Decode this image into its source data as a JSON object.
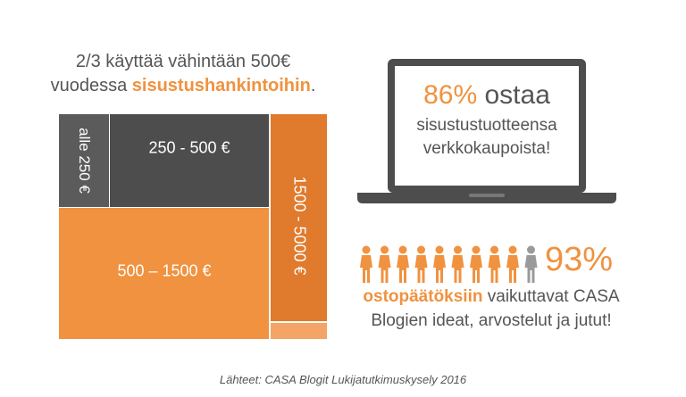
{
  "headline": {
    "line1": "2/3 käyttää vähintään 500€",
    "line2_plain": "vuodessa ",
    "line2_emphasis": "sisustushankintoihin",
    "line2_end": "."
  },
  "chart_data": {
    "type": "treemap",
    "title": "",
    "items": [
      {
        "label": "alle 250 €",
        "color": "#5b5b5b"
      },
      {
        "label": "250 - 500 €",
        "color": "#4d4d4d"
      },
      {
        "label": "500 – 1500 €",
        "color": "#f0923f"
      },
      {
        "label": "1500 - 5000 €",
        "color": "#e07a2c"
      },
      {
        "label": "",
        "color": "#f3a466"
      }
    ]
  },
  "laptop_stat": {
    "percent": "86%",
    "verb": "ostaa",
    "line1": "sisustustuotteensa",
    "line2": "verkkokaupoista!"
  },
  "people_stat": {
    "percent": "93%",
    "figures_total": 10,
    "figures_highlighted": 9,
    "line1_emphasis": "ostopäätöksiin",
    "line1_rest": " vaikuttavat CASA",
    "line2": "Blogien ideat, arvostelut ja jutut!"
  },
  "source": "Lähteet: CASA Blogit Lukijatutkimuskysely 2016",
  "colors": {
    "orange": "#f0923f",
    "dark": "#4d4d4d",
    "grey": "#9a9a9a",
    "text": "#555555"
  }
}
